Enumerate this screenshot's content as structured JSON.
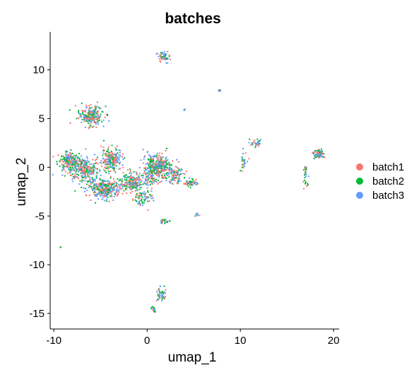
{
  "chart_data": {
    "type": "scatter",
    "title": "batches",
    "xlabel": "umap_1",
    "ylabel": "umap_2",
    "xlim": [
      -10.4,
      20.6
    ],
    "ylim": [
      -16.6,
      13.9
    ],
    "x_ticks": [
      -10,
      0,
      10,
      20
    ],
    "y_ticks": [
      -15,
      -10,
      -5,
      0,
      5,
      10
    ],
    "grid": false,
    "legend_position": "right",
    "series": [
      {
        "name": "batch1",
        "color": "#F8766D"
      },
      {
        "name": "batch2",
        "color": "#00BA38"
      },
      {
        "name": "batch3",
        "color": "#619CFF"
      }
    ],
    "clusters": [
      {
        "cx": -6.0,
        "cy": 5.3,
        "sx": 1.2,
        "sy": 0.9,
        "n": 230
      },
      {
        "cx": -8.5,
        "cy": 0.6,
        "sx": 1.0,
        "sy": 0.9,
        "n": 170
      },
      {
        "cx": -6.8,
        "cy": -0.2,
        "sx": 1.5,
        "sy": 1.2,
        "n": 280
      },
      {
        "cx": -3.8,
        "cy": 0.8,
        "sx": 1.0,
        "sy": 1.0,
        "n": 200
      },
      {
        "cx": -4.5,
        "cy": -2.2,
        "sx": 1.5,
        "sy": 0.9,
        "n": 300
      },
      {
        "cx": -1.5,
        "cy": -1.6,
        "sx": 1.3,
        "sy": 1.0,
        "n": 220
      },
      {
        "cx": 0.5,
        "cy": -0.3,
        "sx": 0.8,
        "sy": 1.8,
        "n": 180
      },
      {
        "cx": 1.5,
        "cy": 0.1,
        "sx": 0.9,
        "sy": 1.0,
        "n": 200
      },
      {
        "cx": 3.0,
        "cy": -0.8,
        "sx": 0.9,
        "sy": 0.8,
        "n": 110
      },
      {
        "cx": 4.6,
        "cy": -1.6,
        "sx": 0.8,
        "sy": 0.4,
        "n": 50
      },
      {
        "cx": -0.5,
        "cy": -3.2,
        "sx": 1.0,
        "sy": 0.7,
        "n": 60
      },
      {
        "cx": 1.8,
        "cy": 11.4,
        "sx": 0.5,
        "sy": 0.5,
        "n": 60
      },
      {
        "cx": 7.8,
        "cy": 7.9,
        "sx": 0.12,
        "sy": 0.12,
        "n": 6
      },
      {
        "cx": 4.0,
        "cy": 5.9,
        "sx": 0.1,
        "sy": 0.1,
        "n": 5
      },
      {
        "cx": 11.6,
        "cy": 2.5,
        "sx": 0.6,
        "sy": 0.4,
        "n": 30
      },
      {
        "cx": 10.4,
        "cy": 0.5,
        "sx": 0.4,
        "sy": 1.0,
        "n": 24
      },
      {
        "cx": 18.4,
        "cy": 1.4,
        "sx": 0.5,
        "sy": 0.5,
        "n": 70
      },
      {
        "cx": 17.0,
        "cy": -0.9,
        "sx": 0.25,
        "sy": 1.0,
        "n": 30
      },
      {
        "cx": 2.0,
        "cy": -5.6,
        "sx": 0.6,
        "sy": 0.2,
        "n": 22
      },
      {
        "cx": 5.4,
        "cy": -4.9,
        "sx": 0.2,
        "sy": 0.2,
        "n": 8
      },
      {
        "cx": 1.5,
        "cy": -13.1,
        "sx": 0.5,
        "sy": 0.6,
        "n": 50
      },
      {
        "cx": 0.7,
        "cy": -14.6,
        "sx": 0.25,
        "sy": 0.3,
        "n": 20
      },
      {
        "cx": -9.3,
        "cy": -8.2,
        "sx": 0.05,
        "sy": 0.05,
        "n": 2
      }
    ]
  }
}
